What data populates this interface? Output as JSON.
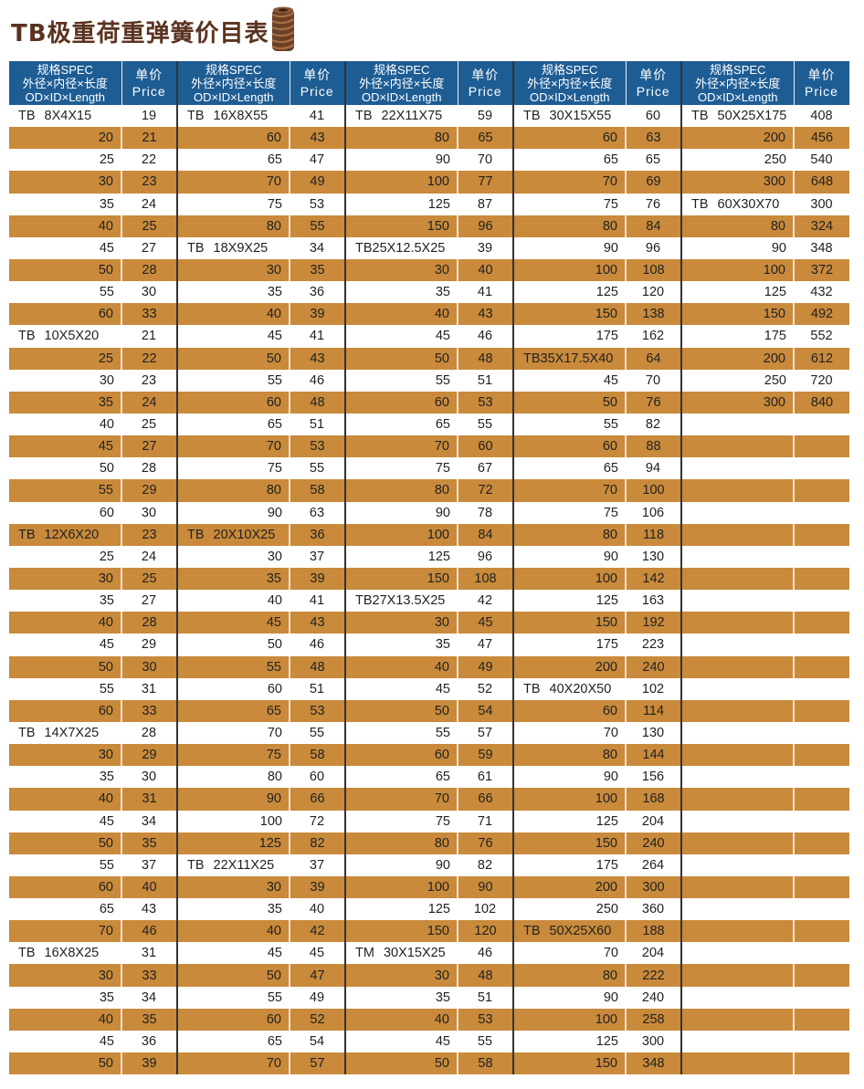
{
  "title": "TB极重荷重弹簧价目表",
  "colors": {
    "header": "#1e5d94",
    "stripe": "#c98a3b",
    "title": "#5a3320"
  },
  "icon": "coil-spring-image",
  "header": {
    "spec_line1": "规格SPEC",
    "spec_line2": "外径×内径×长度",
    "spec_line3": "OD×ID×Length",
    "price_line1": "单价",
    "price_line2": "Price"
  },
  "groups": [
    [
      [
        "TB 8X4X15",
        "19"
      ],
      [
        "20",
        "21"
      ],
      [
        "25",
        "22"
      ],
      [
        "30",
        "23"
      ],
      [
        "35",
        "24"
      ],
      [
        "40",
        "25"
      ],
      [
        "45",
        "27"
      ],
      [
        "50",
        "28"
      ],
      [
        "55",
        "30"
      ],
      [
        "60",
        "33"
      ],
      [
        "TB 10X5X20",
        "21"
      ],
      [
        "25",
        "22"
      ],
      [
        "30",
        "23"
      ],
      [
        "35",
        "24"
      ],
      [
        "40",
        "25"
      ],
      [
        "45",
        "27"
      ],
      [
        "50",
        "28"
      ],
      [
        "55",
        "29"
      ],
      [
        "60",
        "30"
      ],
      [
        "TB 12X6X20",
        "23"
      ],
      [
        "25",
        "24"
      ],
      [
        "30",
        "25"
      ],
      [
        "35",
        "27"
      ],
      [
        "40",
        "28"
      ],
      [
        "45",
        "29"
      ],
      [
        "50",
        "30"
      ],
      [
        "55",
        "31"
      ],
      [
        "60",
        "33"
      ],
      [
        "TB 14X7X25",
        "28"
      ],
      [
        "30",
        "29"
      ],
      [
        "35",
        "30"
      ],
      [
        "40",
        "31"
      ],
      [
        "45",
        "34"
      ],
      [
        "50",
        "35"
      ],
      [
        "55",
        "37"
      ],
      [
        "60",
        "40"
      ],
      [
        "65",
        "43"
      ],
      [
        "70",
        "46"
      ],
      [
        "TB 16X8X25",
        "31"
      ],
      [
        "30",
        "33"
      ],
      [
        "35",
        "34"
      ],
      [
        "40",
        "35"
      ],
      [
        "45",
        "36"
      ],
      [
        "50",
        "39"
      ]
    ],
    [
      [
        "TB 16X8X55",
        "41"
      ],
      [
        "60",
        "43"
      ],
      [
        "65",
        "47"
      ],
      [
        "70",
        "49"
      ],
      [
        "75",
        "53"
      ],
      [
        "80",
        "55"
      ],
      [
        "TB 18X9X25",
        "34"
      ],
      [
        "30",
        "35"
      ],
      [
        "35",
        "36"
      ],
      [
        "40",
        "39"
      ],
      [
        "45",
        "41"
      ],
      [
        "50",
        "43"
      ],
      [
        "55",
        "46"
      ],
      [
        "60",
        "48"
      ],
      [
        "65",
        "51"
      ],
      [
        "70",
        "53"
      ],
      [
        "75",
        "55"
      ],
      [
        "80",
        "58"
      ],
      [
        "90",
        "63"
      ],
      [
        "TB 20X10X25",
        "36"
      ],
      [
        "30",
        "37"
      ],
      [
        "35",
        "39"
      ],
      [
        "40",
        "41"
      ],
      [
        "45",
        "43"
      ],
      [
        "50",
        "46"
      ],
      [
        "55",
        "48"
      ],
      [
        "60",
        "51"
      ],
      [
        "65",
        "53"
      ],
      [
        "70",
        "55"
      ],
      [
        "75",
        "58"
      ],
      [
        "80",
        "60"
      ],
      [
        "90",
        "66"
      ],
      [
        "100",
        "72"
      ],
      [
        "125",
        "82"
      ],
      [
        "TB 22X11X25",
        "37"
      ],
      [
        "30",
        "39"
      ],
      [
        "35",
        "40"
      ],
      [
        "40",
        "42"
      ],
      [
        "45",
        "45"
      ],
      [
        "50",
        "47"
      ],
      [
        "55",
        "49"
      ],
      [
        "60",
        "52"
      ],
      [
        "65",
        "54"
      ],
      [
        "70",
        "57"
      ]
    ],
    [
      [
        "TB 22X11X75",
        "59"
      ],
      [
        "80",
        "65"
      ],
      [
        "90",
        "70"
      ],
      [
        "100",
        "77"
      ],
      [
        "125",
        "87"
      ],
      [
        "150",
        "96"
      ],
      [
        "TB25X12.5X25",
        "39"
      ],
      [
        "30",
        "40"
      ],
      [
        "35",
        "41"
      ],
      [
        "40",
        "43"
      ],
      [
        "45",
        "46"
      ],
      [
        "50",
        "48"
      ],
      [
        "55",
        "51"
      ],
      [
        "60",
        "53"
      ],
      [
        "65",
        "55"
      ],
      [
        "70",
        "60"
      ],
      [
        "75",
        "67"
      ],
      [
        "80",
        "72"
      ],
      [
        "90",
        "78"
      ],
      [
        "100",
        "84"
      ],
      [
        "125",
        "96"
      ],
      [
        "150",
        "108"
      ],
      [
        "TB27X13.5X25",
        "42"
      ],
      [
        "30",
        "45"
      ],
      [
        "35",
        "47"
      ],
      [
        "40",
        "49"
      ],
      [
        "45",
        "52"
      ],
      [
        "50",
        "54"
      ],
      [
        "55",
        "57"
      ],
      [
        "60",
        "59"
      ],
      [
        "65",
        "61"
      ],
      [
        "70",
        "66"
      ],
      [
        "75",
        "71"
      ],
      [
        "80",
        "76"
      ],
      [
        "90",
        "82"
      ],
      [
        "100",
        "90"
      ],
      [
        "125",
        "102"
      ],
      [
        "150",
        "120"
      ],
      [
        "TM 30X15X25",
        "46"
      ],
      [
        "30",
        "48"
      ],
      [
        "35",
        "51"
      ],
      [
        "40",
        "53"
      ],
      [
        "45",
        "55"
      ],
      [
        "50",
        "58"
      ]
    ],
    [
      [
        "TB 30X15X55",
        "60"
      ],
      [
        "60",
        "63"
      ],
      [
        "65",
        "65"
      ],
      [
        "70",
        "69"
      ],
      [
        "75",
        "76"
      ],
      [
        "80",
        "84"
      ],
      [
        "90",
        "96"
      ],
      [
        "100",
        "108"
      ],
      [
        "125",
        "120"
      ],
      [
        "150",
        "138"
      ],
      [
        "175",
        "162"
      ],
      [
        "TB35X17.5X40",
        "64"
      ],
      [
        "45",
        "70"
      ],
      [
        "50",
        "76"
      ],
      [
        "55",
        "82"
      ],
      [
        "60",
        "88"
      ],
      [
        "65",
        "94"
      ],
      [
        "70",
        "100"
      ],
      [
        "75",
        "106"
      ],
      [
        "80",
        "118"
      ],
      [
        "90",
        "130"
      ],
      [
        "100",
        "142"
      ],
      [
        "125",
        "163"
      ],
      [
        "150",
        "192"
      ],
      [
        "175",
        "223"
      ],
      [
        "200",
        "240"
      ],
      [
        "TB 40X20X50",
        "102"
      ],
      [
        "60",
        "114"
      ],
      [
        "70",
        "130"
      ],
      [
        "80",
        "144"
      ],
      [
        "90",
        "156"
      ],
      [
        "100",
        "168"
      ],
      [
        "125",
        "204"
      ],
      [
        "150",
        "240"
      ],
      [
        "175",
        "264"
      ],
      [
        "200",
        "300"
      ],
      [
        "250",
        "360"
      ],
      [
        "TB 50X25X60",
        "188"
      ],
      [
        "70",
        "204"
      ],
      [
        "80",
        "222"
      ],
      [
        "90",
        "240"
      ],
      [
        "100",
        "258"
      ],
      [
        "125",
        "300"
      ],
      [
        "150",
        "348"
      ]
    ],
    [
      [
        "TB 50X25X175",
        "408"
      ],
      [
        "200",
        "456"
      ],
      [
        "250",
        "540"
      ],
      [
        "300",
        "648"
      ],
      [
        "TB 60X30X70",
        "300"
      ],
      [
        "80",
        "324"
      ],
      [
        "90",
        "348"
      ],
      [
        "100",
        "372"
      ],
      [
        "125",
        "432"
      ],
      [
        "150",
        "492"
      ],
      [
        "175",
        "552"
      ],
      [
        "200",
        "612"
      ],
      [
        "250",
        "720"
      ],
      [
        "300",
        "840"
      ]
    ]
  ]
}
